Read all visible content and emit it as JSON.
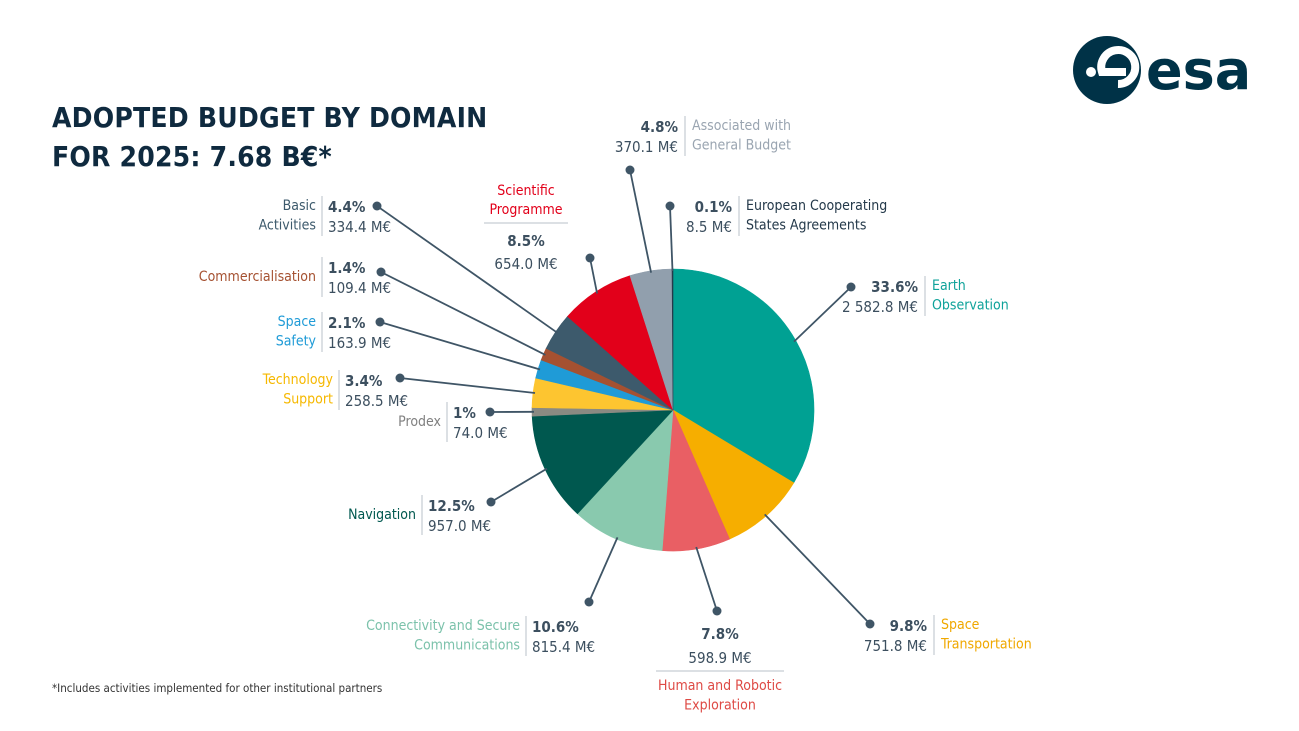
{
  "title_lines": [
    "ADOPTED BUDGET BY DOMAIN",
    "FOR 2025: 7.68 B€*"
  ],
  "footnote": "*Includes activities implemented for other institutional partners",
  "logo": {
    "icon": "esa-logo-icon",
    "text": "esa"
  },
  "chart_data": {
    "type": "pie",
    "title": "ADOPTED BUDGET BY DOMAIN FOR 2025: 7.68 B€*",
    "total": "7.68 B€",
    "legend": "none",
    "slices": [
      {
        "name": "Earth Observation",
        "name_lines": [
          "Earth",
          "Observation"
        ],
        "percent": 33.6,
        "pct_label": "33.6%",
        "value": 2582.8,
        "value_label": "2 582.8 M€",
        "color": "#00a193"
      },
      {
        "name": "Space Transportation",
        "name_lines": [
          "Space",
          "Transportation"
        ],
        "percent": 9.8,
        "pct_label": "9.8%",
        "value": 751.8,
        "value_label": "751.8 M€",
        "color": "#f6ae00"
      },
      {
        "name": "Human and Robotic Exploration",
        "name_lines": [
          "Human and Robotic",
          "Exploration"
        ],
        "percent": 7.8,
        "pct_label": "7.8%",
        "value": 598.9,
        "value_label": "598.9 M€",
        "color": "#e95f64"
      },
      {
        "name": "Connectivity and Secure Communications",
        "name_lines": [
          "Connectivity and Secure",
          "Communications"
        ],
        "percent": 10.6,
        "pct_label": "10.6%",
        "value": 815.4,
        "value_label": "815.4 M€",
        "color": "#89c9ae"
      },
      {
        "name": "Navigation",
        "name_lines": [
          "Navigation"
        ],
        "percent": 12.5,
        "pct_label": "12.5%",
        "value": 957.0,
        "value_label": "957.0 M€",
        "color": "#00584f"
      },
      {
        "name": "Prodex",
        "name_lines": [
          "Prodex"
        ],
        "percent": 1.0,
        "pct_label": "1%",
        "value": 74.0,
        "value_label": "74.0 M€",
        "color": "#8a8a82"
      },
      {
        "name": "Technology Support",
        "name_lines": [
          "Technology",
          "Support"
        ],
        "percent": 3.4,
        "pct_label": "3.4%",
        "value": 258.5,
        "value_label": "258.5 M€",
        "color": "#fdc530"
      },
      {
        "name": "Space Safety",
        "name_lines": [
          "Space",
          "Safety"
        ],
        "percent": 2.1,
        "pct_label": "2.1%",
        "value": 163.9,
        "value_label": "163.9 M€",
        "color": "#1f9bd7"
      },
      {
        "name": "Commercialisation",
        "name_lines": [
          "Commercialisation"
        ],
        "percent": 1.4,
        "pct_label": "1.4%",
        "value": 109.4,
        "value_label": "109.4 M€",
        "color": "#a55131"
      },
      {
        "name": "Basic Activities",
        "name_lines": [
          "Basic",
          "Activities"
        ],
        "percent": 4.4,
        "pct_label": "4.4%",
        "value": 334.4,
        "value_label": "334.4 M€",
        "color": "#3d5a6c"
      },
      {
        "name": "Scientific Programme",
        "name_lines": [
          "Scientific",
          "Programme"
        ],
        "percent": 8.5,
        "pct_label": "8.5%",
        "value": 654.0,
        "value_label": "654.0 M€",
        "color": "#e2001a"
      },
      {
        "name": "Associated with General Budget",
        "name_lines": [
          "Associated with",
          "General Budget"
        ],
        "percent": 4.8,
        "pct_label": "4.8%",
        "value": 370.1,
        "value_label": "370.1 M€",
        "color": "#919fad"
      },
      {
        "name": "European Cooperating States Agreements",
        "name_lines": [
          "European Cooperating",
          "States Agreements"
        ],
        "percent": 0.1,
        "pct_label": "0.1%",
        "value": 8.5,
        "value_label": "8.5 M€",
        "color": "#24394a"
      }
    ]
  }
}
